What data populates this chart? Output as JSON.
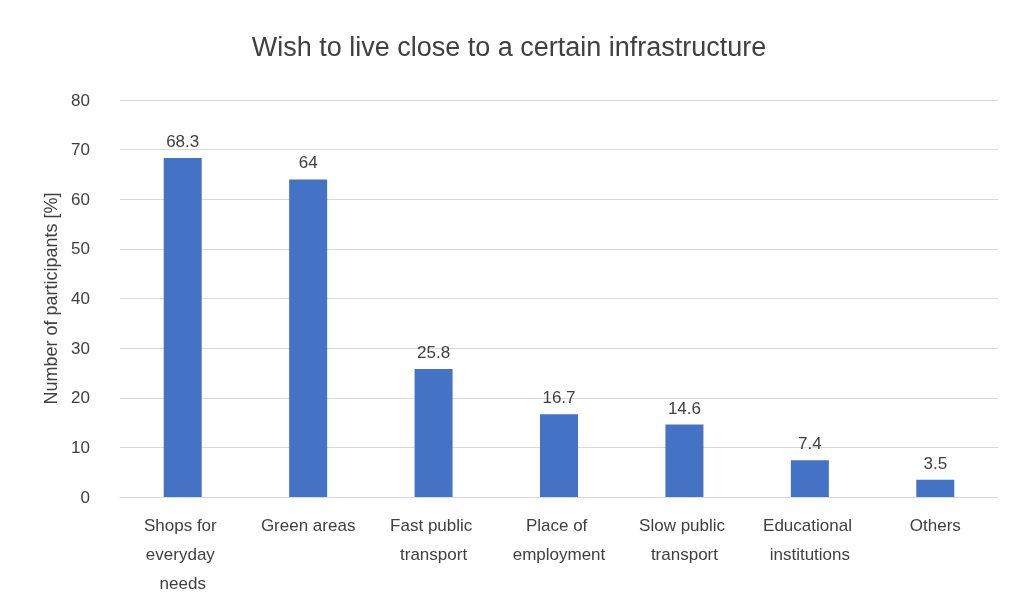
{
  "chart_data": {
    "type": "bar",
    "title": "Wish to live close to a certain infrastructure",
    "ylabel": "Number of participants [%]",
    "categories": [
      "Shops for everyday needs",
      "Green areas",
      "Fast public transport",
      "Place of employment",
      "Slow public transport",
      "Educational institutions",
      "Others"
    ],
    "values": [
      68.3,
      64,
      25.8,
      16.7,
      14.6,
      7.4,
      3.5
    ],
    "color": "#4472c4",
    "data_labels": true,
    "ylim": [
      0,
      80
    ],
    "yticks": [
      0,
      10,
      20,
      30,
      40,
      50,
      60,
      70,
      80
    ],
    "grid": "y"
  }
}
